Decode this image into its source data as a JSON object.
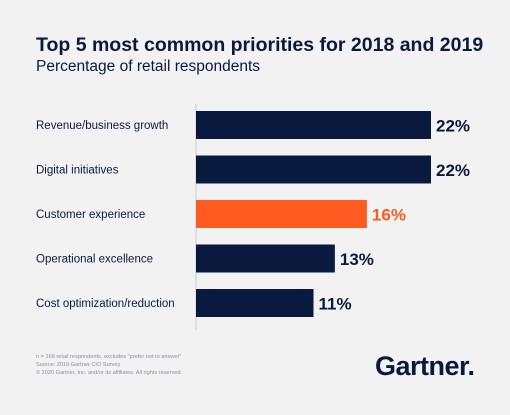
{
  "title": "Top 5 most common priorities for 2018 and 2019",
  "subtitle": "Percentage of retail respondents",
  "chart_data": {
    "type": "bar",
    "orientation": "horizontal",
    "categories": [
      "Revenue/business growth",
      "Digital initiatives",
      "Customer experience",
      "Operational excellence",
      "Cost optimization/reduction"
    ],
    "values": [
      22,
      22,
      16,
      13,
      11
    ],
    "value_labels": [
      "22%",
      "22%",
      "16%",
      "13%",
      "11%"
    ],
    "unit": "%",
    "highlight_index": 2,
    "title": "Top 5 most common priorities for 2018 and 2019",
    "subtitle": "Percentage of retail respondents",
    "xlabel": "",
    "ylabel": "",
    "xlim": [
      0,
      22
    ],
    "grid": false,
    "legend": "none"
  },
  "colors": {
    "bar": "#0a1a3f",
    "highlight": "#ff5a1f",
    "axis": "#c8cacd",
    "text": "#0a1a3f",
    "background": "#f2f2f2"
  },
  "footnote": {
    "line1": "n = 168 retail respondents, excludes \"prefer not to answer\"",
    "line2": "Source: 2019 Gartner CIO Survey",
    "line3": "© 2020 Gartner, Inc. and/or its affiliates. All rights reserved."
  },
  "logo": {
    "text": "Gartner",
    "dot": "."
  }
}
